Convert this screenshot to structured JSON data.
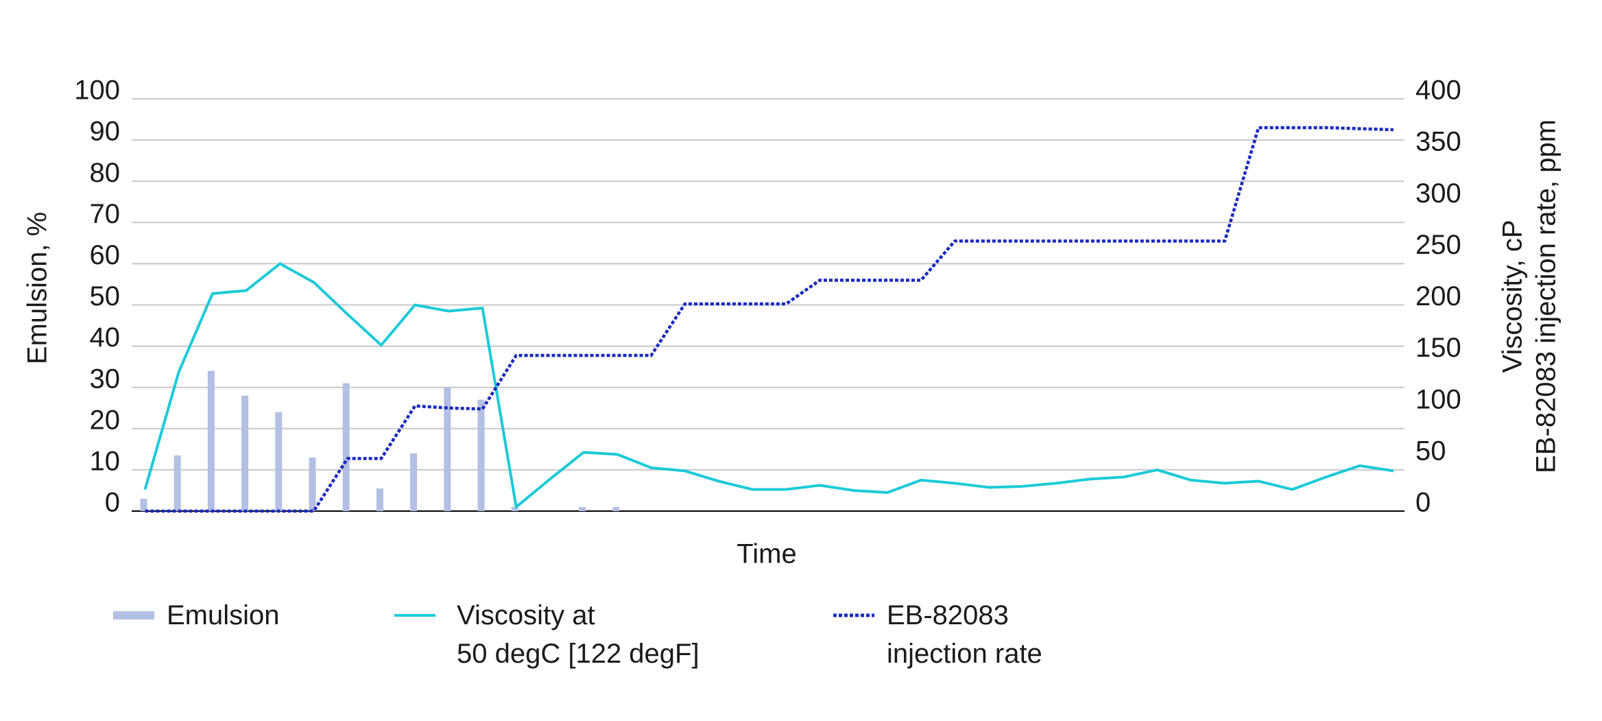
{
  "chart_data": {
    "type": "bar-line",
    "x_label": "Time",
    "y_label": "Emulsion, %",
    "y2_label": [
      "Viscosity, cP",
      "EB-82083 injection rate, ppm"
    ],
    "categories": [
      null,
      null,
      null,
      null,
      null,
      null,
      null,
      null,
      null,
      null,
      null,
      null,
      null,
      null,
      null,
      null,
      null,
      null,
      null,
      null,
      null,
      null,
      null,
      null,
      null,
      null,
      null,
      null,
      null,
      null,
      null,
      null,
      null,
      null,
      null,
      null,
      null,
      null
    ],
    "series": [
      {
        "name": "Emulsion",
        "type": "bar",
        "color": "#b3bfe4",
        "axis": "y",
        "values": [
          3,
          13.5,
          34,
          28,
          24,
          13,
          31,
          5.5,
          14,
          30,
          27,
          1,
          null,
          1,
          1,
          null,
          null,
          null,
          null,
          null,
          null,
          null,
          null,
          null,
          null,
          null,
          null,
          null,
          null,
          null,
          null,
          null,
          null,
          null,
          null,
          null,
          null,
          null
        ]
      },
      {
        "name": "Viscosity at\n50 degC [122 degF]",
        "type": "line",
        "color": "#1ccad8",
        "axis": "y2",
        "values": [
          21,
          135,
          211,
          214,
          240,
          222,
          191,
          161,
          200,
          194,
          197,
          4,
          31,
          57,
          55,
          42,
          39,
          29,
          21,
          21,
          25,
          20,
          18,
          30,
          27,
          23,
          24,
          27,
          31,
          33,
          40,
          30,
          27,
          29,
          21,
          33,
          44,
          39
        ]
      },
      {
        "name": "EB-82083\ninjection rate",
        "type": "line",
        "dashed": true,
        "color": "#1a2bbd",
        "axis": "y2",
        "values": [
          0,
          0,
          0,
          0,
          0,
          0,
          51,
          51,
          102,
          100,
          99,
          151,
          151,
          151,
          151,
          151,
          201,
          201,
          201,
          201,
          224,
          224,
          224,
          224,
          262,
          262,
          262,
          262,
          262,
          262,
          262,
          262,
          262,
          372,
          372,
          372,
          371,
          370
        ]
      }
    ],
    "ylim": [
      0,
      100
    ],
    "yticks": [
      0,
      10,
      20,
      30,
      40,
      50,
      60,
      70,
      80,
      90,
      100
    ],
    "y2lim": [
      0,
      400
    ],
    "y2ticks": [
      0,
      50,
      100,
      150,
      200,
      250,
      300,
      350,
      400
    ],
    "grid": true,
    "legend": "bottom"
  }
}
